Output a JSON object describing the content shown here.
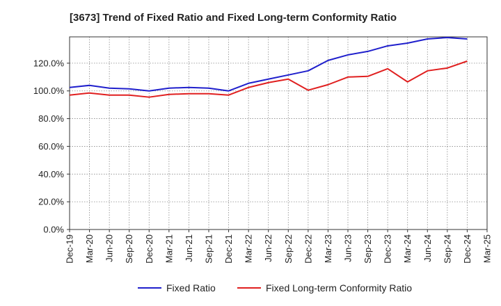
{
  "chart_data": {
    "type": "line",
    "title": "[3673]  Trend of Fixed Ratio and Fixed Long-term Conformity Ratio",
    "xlabel": "",
    "ylabel": "",
    "categories": [
      "Dec-19",
      "Mar-20",
      "Jun-20",
      "Sep-20",
      "Dec-20",
      "Mar-21",
      "Jun-21",
      "Sep-21",
      "Dec-21",
      "Mar-22",
      "Jun-22",
      "Sep-22",
      "Dec-22",
      "Mar-23",
      "Jun-23",
      "Sep-23",
      "Dec-23",
      "Mar-24",
      "Jun-24",
      "Sep-24",
      "Dec-24",
      "Mar-25"
    ],
    "y_ticks": [
      0,
      20,
      40,
      60,
      80,
      100,
      120
    ],
    "y_tick_labels": [
      "0.0%",
      "20.0%",
      "40.0%",
      "60.0%",
      "80.0%",
      "100.0%",
      "120.0%"
    ],
    "ylim": [
      0,
      139
    ],
    "grid": true,
    "legend_position": "bottom",
    "series": [
      {
        "name": "Fixed Ratio",
        "color": "#1f1fcc",
        "values": [
          102.5,
          104,
          102,
          101.5,
          100,
          102,
          102.5,
          102,
          100,
          105.5,
          108.5,
          111.5,
          114.5,
          122,
          126,
          128.5,
          132.5,
          134.5,
          137.5,
          138.5,
          137.5,
          null
        ]
      },
      {
        "name": "Fixed Long-term Conformity Ratio",
        "color": "#e01f1f",
        "values": [
          97,
          98.5,
          97,
          97,
          95.5,
          97.5,
          98,
          98,
          97,
          102.5,
          106,
          108.5,
          100.5,
          104.5,
          110,
          110.5,
          116,
          106.5,
          114.5,
          116.5,
          121.5,
          null
        ]
      }
    ]
  }
}
